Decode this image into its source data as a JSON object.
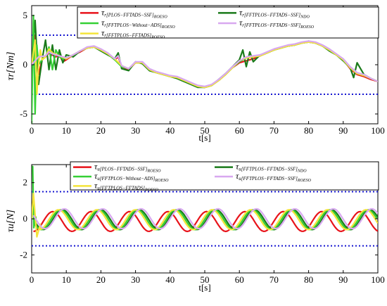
{
  "figure": {
    "colors": {
      "red": "#e8131a",
      "darkgreen": "#1a7a1a",
      "green": "#35d035",
      "violet": "#d8a8f0",
      "yellow": "#f4e43a",
      "bound": "#1414d0"
    }
  },
  "chart_data": [
    {
      "type": "line",
      "ylabel": "τr[Nm]",
      "xlabel": "t[s]",
      "xlim": [
        0,
        100
      ],
      "ylim": [
        -6,
        6
      ],
      "xticks": [
        "0",
        "10",
        "20",
        "30",
        "40",
        "50",
        "60",
        "70",
        "80",
        "90",
        "100"
      ],
      "yticks": [
        "5",
        "0",
        "-5"
      ],
      "grid": false,
      "legend_position": "top",
      "legend": [
        {
          "base": "τ",
          "sub": "r[PLOS−FFTADS−SSF]",
          "sub2": "ROESO",
          "color": "#e8131a"
        },
        {
          "base": "τ",
          "sub": "r[FFTPLOS−FFTADS−SSF]",
          "sub2": "NDO",
          "color": "#1a7a1a"
        },
        {
          "base": "τ",
          "sub": "r[FFTPLOS−Without−ADS]",
          "sub2": "ROESO",
          "color": "#35d035"
        },
        {
          "base": "τ",
          "sub": "r[FFTPLOS−FFTADS−SSF]",
          "sub2": "ROESO",
          "color": "#d8a8f0"
        },
        {
          "base": "τ",
          "sub": "r[FFTPLOS−FFTADS]",
          "sub2": "ROESO",
          "color": "#f4e43a"
        }
      ],
      "bounds": [
        3,
        -3
      ],
      "series_order": [
        "red",
        "darkgreen",
        "green",
        "yellow",
        "violet"
      ],
      "series": [
        {
          "key": "red",
          "name": "τr[PLOS−FFTADS−SSF]ROESO",
          "color": "#e8131a",
          "x": [
            0,
            1,
            2,
            3,
            4,
            5,
            6,
            7,
            8,
            9,
            10,
            12,
            14,
            16,
            18,
            20,
            22,
            24,
            25,
            26,
            28,
            30,
            32,
            34,
            36,
            38,
            40,
            42,
            44,
            46,
            48,
            50,
            52,
            54,
            56,
            58,
            60,
            62,
            64,
            66,
            68,
            70,
            72,
            74,
            76,
            78,
            80,
            82,
            84,
            86,
            88,
            90,
            92,
            94,
            96,
            98,
            100
          ],
          "y": [
            0,
            3,
            -1,
            0.5,
            0.8,
            1.2,
            1.0,
            0.8,
            1.0,
            0.3,
            0.5,
            1.0,
            1.3,
            1.7,
            1.8,
            1.5,
            1.1,
            0.5,
            0.8,
            -0.2,
            -0.5,
            0.2,
            0.2,
            -0.5,
            -0.8,
            -1.0,
            -1.2,
            -1.3,
            -1.6,
            -1.9,
            -2.2,
            -2.3,
            -2.1,
            -1.6,
            -1.0,
            -0.3,
            0.2,
            0.4,
            0.6,
            0.9,
            1.2,
            1.5,
            1.7,
            1.9,
            2.0,
            2.2,
            2.3,
            2.2,
            1.9,
            1.5,
            1.0,
            0.5,
            -0.4,
            -1.0,
            -1.2,
            -1.5,
            -1.7
          ]
        },
        {
          "key": "darkgreen",
          "name": "τr[FFTPLOS−FFTADS−SSF]NDO",
          "color": "#1a7a1a",
          "x": [
            0,
            1,
            2,
            3,
            4,
            5,
            6,
            7,
            8,
            9,
            10,
            12,
            14,
            16,
            18,
            20,
            22,
            24,
            25,
            26,
            28,
            30,
            32,
            34,
            36,
            38,
            40,
            42,
            44,
            46,
            48,
            50,
            52,
            54,
            56,
            58,
            60,
            61,
            62,
            63,
            64,
            66,
            68,
            70,
            72,
            74,
            76,
            78,
            80,
            82,
            84,
            86,
            88,
            90,
            92,
            93,
            94,
            96,
            98,
            100
          ],
          "y": [
            0,
            4.5,
            -2,
            0.5,
            2.5,
            -0.5,
            2.0,
            -0.5,
            1.5,
            0.2,
            1.0,
            0.8,
            1.4,
            1.7,
            1.8,
            1.4,
            1.0,
            0.6,
            1.2,
            -0.4,
            -0.6,
            0.3,
            0.1,
            -0.6,
            -0.8,
            -1.0,
            -1.2,
            -1.4,
            -1.7,
            -2.0,
            -2.3,
            -2.3,
            -2.1,
            -1.5,
            -0.9,
            -0.2,
            0.5,
            1.5,
            -0.2,
            1.3,
            0.3,
            1.0,
            1.2,
            1.5,
            1.7,
            1.9,
            2.0,
            2.2,
            2.4,
            2.2,
            1.9,
            1.4,
            1.0,
            0.4,
            -0.3,
            -1.3,
            0.2,
            -1.0,
            -1.4,
            -1.7
          ]
        },
        {
          "key": "green",
          "name": "τr[FFTPLOS−Without−ADS]ROESO",
          "color": "#35d035",
          "x": [
            0,
            0.5,
            1,
            1.5,
            2,
            3,
            4,
            5,
            6,
            7,
            8,
            9,
            10,
            12,
            14,
            16,
            18,
            20,
            22,
            24,
            26,
            28,
            30,
            32,
            34,
            36,
            38,
            40,
            42,
            44,
            46,
            48,
            50,
            52,
            54,
            56,
            58,
            60,
            62,
            64,
            66,
            68,
            70,
            72,
            74,
            76,
            78,
            80,
            82,
            84,
            86,
            88,
            90,
            92,
            94,
            96,
            98,
            100
          ],
          "y": [
            -6,
            5,
            -5,
            2,
            0,
            0.5,
            0.8,
            1.8,
            -0.5,
            1.5,
            0.8,
            0.6,
            0.7,
            1.0,
            1.4,
            1.7,
            1.8,
            1.5,
            1.1,
            0.5,
            -0.2,
            -0.4,
            0.2,
            0.2,
            -0.5,
            -0.8,
            -1.0,
            -1.2,
            -1.3,
            -1.6,
            -1.9,
            -2.2,
            -2.3,
            -2.1,
            -1.6,
            -1.0,
            -0.3,
            0.3,
            0.7,
            0.8,
            0.9,
            1.2,
            1.5,
            1.7,
            1.9,
            2.0,
            2.2,
            2.3,
            2.2,
            1.9,
            1.5,
            1.0,
            0.5,
            -0.3,
            -0.9,
            -1.1,
            -1.4,
            -1.7
          ]
        },
        {
          "key": "yellow",
          "name": "τr[FFTPLOS−FFTADS]ROESO",
          "color": "#f4e43a",
          "x": [
            0,
            1,
            1.5,
            2,
            2.5,
            3,
            4,
            5,
            6,
            8,
            10,
            12,
            14,
            16,
            18,
            20,
            22,
            24,
            26,
            28,
            30,
            32,
            34,
            36,
            38,
            40,
            42,
            44,
            46,
            48,
            50,
            52,
            54,
            56,
            58,
            60,
            62,
            64,
            66,
            68,
            70,
            72,
            74,
            76,
            78,
            80,
            82,
            84,
            86,
            88,
            90,
            92,
            94,
            96,
            98,
            100
          ],
          "y": [
            0,
            2.5,
            -3,
            0,
            1.5,
            0.5,
            0.8,
            1.6,
            1.2,
            0.9,
            0.6,
            1.0,
            1.4,
            1.7,
            1.8,
            1.5,
            1.1,
            0.6,
            -0.1,
            -0.4,
            0.2,
            0.2,
            -0.5,
            -0.8,
            -1.0,
            -1.2,
            -1.3,
            -1.6,
            -1.9,
            -2.2,
            -2.3,
            -2.1,
            -1.6,
            -1.0,
            -0.3,
            0.4,
            0.7,
            0.8,
            0.9,
            1.2,
            1.5,
            1.7,
            1.9,
            2.0,
            2.2,
            2.3,
            2.2,
            1.9,
            1.5,
            1.0,
            0.5,
            -0.3,
            -0.9,
            -1.1,
            -1.4,
            -1.7
          ]
        },
        {
          "key": "violet",
          "name": "τr[FFTPLOS−FFTADS−SSF]ROESO",
          "color": "#d8a8f0",
          "x": [
            0,
            2,
            4,
            5,
            6,
            8,
            10,
            12,
            14,
            16,
            18,
            20,
            22,
            24,
            25,
            26,
            28,
            30,
            32,
            34,
            36,
            38,
            40,
            42,
            44,
            46,
            48,
            50,
            52,
            54,
            56,
            58,
            60,
            62,
            64,
            66,
            68,
            70,
            72,
            74,
            76,
            78,
            80,
            82,
            84,
            86,
            88,
            90,
            92,
            94,
            96,
            98,
            100
          ],
          "y": [
            0,
            0.8,
            0.9,
            1.3,
            1.1,
            0.9,
            0.7,
            1.0,
            1.4,
            1.8,
            1.9,
            1.6,
            1.2,
            0.6,
            0.9,
            -0.1,
            -0.4,
            0.3,
            0.3,
            -0.4,
            -0.7,
            -0.9,
            -1.1,
            -1.2,
            -1.5,
            -1.8,
            -2.1,
            -2.2,
            -2.0,
            -1.5,
            -0.9,
            -0.2,
            0.4,
            0.8,
            0.9,
            1.0,
            1.3,
            1.6,
            1.8,
            2.0,
            2.1,
            2.3,
            2.4,
            2.3,
            2.0,
            1.6,
            1.1,
            0.6,
            -0.2,
            -0.8,
            -1.0,
            -1.4,
            -1.7
          ]
        }
      ]
    },
    {
      "type": "line",
      "ylabel": "τu[N]",
      "xlabel": "t[s]",
      "xlim": [
        0,
        100
      ],
      "ylim": [
        -3,
        3
      ],
      "xticks": [
        "0",
        "10",
        "20",
        "30",
        "40",
        "50",
        "60",
        "70",
        "80",
        "90",
        "100"
      ],
      "yticks": [
        "2",
        "0",
        "-2"
      ],
      "grid": false,
      "legend_position": "top",
      "legend": [
        {
          "base": "τ",
          "sub": "u[PLOS−FFTADS−SSF]",
          "sub2": "ROESO",
          "color": "#e8131a"
        },
        {
          "base": "τ",
          "sub": "u[FFTPLOS−FFTADS−SSF]",
          "sub2": "NDO",
          "color": "#1a7a1a"
        },
        {
          "base": "τ",
          "sub": "u[FFTPLOS−Without−ADS]",
          "sub2": "ROESO",
          "color": "#35d035"
        },
        {
          "base": "τ",
          "sub": "u[FFTPLOS−FFTADS−SSF]",
          "sub2": "ROESO",
          "color": "#d8a8f0"
        },
        {
          "base": "τ",
          "sub": "u[FFTPLOS−FFTADS]",
          "sub2": "ROESO",
          "color": "#f4e43a"
        }
      ],
      "bounds": [
        1.5,
        -1.5
      ],
      "series_order": [
        "red",
        "darkgreen",
        "green",
        "yellow",
        "violet"
      ],
      "series": [
        {
          "key": "red",
          "name": "τu[PLOS−FFTADS−SSF]ROESO",
          "color": "#e8131a",
          "sine": {
            "offset": -0.15,
            "amp": 0.55,
            "period": 11.1,
            "phase": 0.3
          }
        },
        {
          "key": "darkgreen",
          "name": "τu[FFTPLOS−FFTADS−SSF]NDO",
          "color": "#1a7a1a",
          "sine": {
            "offset": -0.05,
            "amp": 0.55,
            "period": 11.1,
            "phase": 0.55
          }
        },
        {
          "key": "green",
          "name": "τu[FFTPLOS−Without−ADS]ROESO",
          "color": "#35d035",
          "sine": {
            "offset": -0.05,
            "amp": 0.55,
            "period": 11.1,
            "phase": 0.5
          },
          "start": {
            "x": [
              0,
              0.3,
              0.6,
              1.2
            ],
            "y": [
              2.9,
              2.9,
              -0.5,
              0.1
            ]
          }
        },
        {
          "key": "yellow",
          "name": "τu[FFTPLOS−FFTADS]ROESO",
          "color": "#f4e43a",
          "sine": {
            "offset": -0.05,
            "amp": 0.55,
            "period": 11.1,
            "phase": 0.45
          },
          "start": {
            "x": [
              0,
              0.5,
              1.5,
              2.5
            ],
            "y": [
              0,
              1.4,
              -1.0,
              -0.3
            ]
          }
        },
        {
          "key": "violet",
          "name": "τu[FFTPLOS−FFTADS−SSF]ROESO",
          "color": "#d8a8f0",
          "sine": {
            "offset": 0.0,
            "amp": 0.55,
            "period": 11.1,
            "phase": 0.6
          }
        }
      ]
    }
  ]
}
